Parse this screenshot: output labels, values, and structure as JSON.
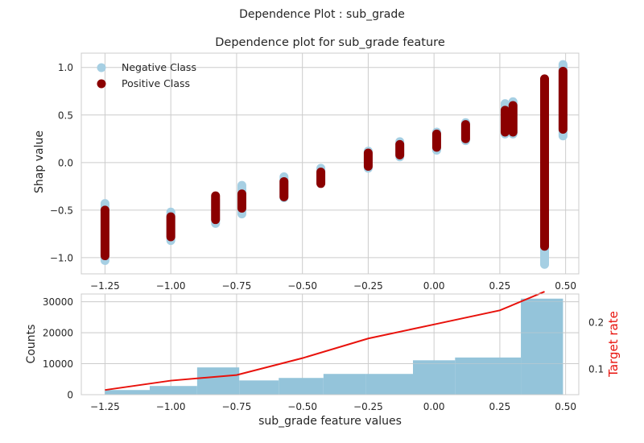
{
  "suptitle": "Dependence Plot : sub_grade",
  "chart_data": [
    {
      "type": "scatter",
      "title": "Dependence plot for sub_grade feature",
      "xlabel": "",
      "ylabel": "Shap value",
      "xlim": [
        -1.34,
        0.55
      ],
      "ylim": [
        -1.17,
        1.15
      ],
      "x_ticks": [
        -1.25,
        -1.0,
        -0.75,
        -0.5,
        -0.25,
        0.0,
        0.25,
        0.5
      ],
      "x_tick_labels": [
        "−1.25",
        "−1.00",
        "−0.75",
        "−0.50",
        "−0.25",
        "0.00",
        "0.25",
        "0.50"
      ],
      "y_ticks": [
        -1.0,
        -0.5,
        0.0,
        0.5,
        1.0
      ],
      "y_tick_labels": [
        "−1.0",
        "−0.5",
        "0.0",
        "0.5",
        "1.0"
      ],
      "grid": true,
      "legend_position": "top-left",
      "series": [
        {
          "name": "Negative Class",
          "color": "#a6cfe3",
          "points": [
            {
              "x": -1.25,
              "ymin": -1.03,
              "ymax": -0.43
            },
            {
              "x": -1.0,
              "ymin": -0.82,
              "ymax": -0.52
            },
            {
              "x": -0.83,
              "ymin": -0.64,
              "ymax": -0.39
            },
            {
              "x": -0.73,
              "ymin": -0.54,
              "ymax": -0.24
            },
            {
              "x": -0.57,
              "ymin": -0.37,
              "ymax": -0.15
            },
            {
              "x": -0.43,
              "ymin": -0.22,
              "ymax": -0.06
            },
            {
              "x": -0.25,
              "ymin": -0.06,
              "ymax": 0.12
            },
            {
              "x": -0.13,
              "ymin": 0.06,
              "ymax": 0.22
            },
            {
              "x": 0.01,
              "ymin": 0.13,
              "ymax": 0.32
            },
            {
              "x": 0.12,
              "ymin": 0.23,
              "ymax": 0.42
            },
            {
              "x": 0.27,
              "ymin": 0.3,
              "ymax": 0.62
            },
            {
              "x": 0.3,
              "ymin": 0.3,
              "ymax": 0.64
            },
            {
              "x": 0.42,
              "ymin": -1.07,
              "ymax": 0.86
            },
            {
              "x": 0.49,
              "ymin": 0.28,
              "ymax": 1.03
            }
          ]
        },
        {
          "name": "Positive Class",
          "color": "#8b0000",
          "points": [
            {
              "x": -1.25,
              "ymin": -0.98,
              "ymax": -0.5
            },
            {
              "x": -1.0,
              "ymin": -0.78,
              "ymax": -0.57
            },
            {
              "x": -0.83,
              "ymin": -0.6,
              "ymax": -0.35
            },
            {
              "x": -0.73,
              "ymin": -0.48,
              "ymax": -0.33
            },
            {
              "x": -0.57,
              "ymin": -0.36,
              "ymax": -0.2
            },
            {
              "x": -0.43,
              "ymin": -0.22,
              "ymax": -0.1
            },
            {
              "x": -0.25,
              "ymin": -0.04,
              "ymax": 0.1
            },
            {
              "x": -0.13,
              "ymin": 0.08,
              "ymax": 0.19
            },
            {
              "x": 0.01,
              "ymin": 0.16,
              "ymax": 0.3
            },
            {
              "x": 0.12,
              "ymin": 0.25,
              "ymax": 0.4
            },
            {
              "x": 0.27,
              "ymin": 0.32,
              "ymax": 0.55
            },
            {
              "x": 0.3,
              "ymin": 0.32,
              "ymax": 0.6
            },
            {
              "x": 0.42,
              "ymin": -0.88,
              "ymax": 0.88
            },
            {
              "x": 0.49,
              "ymin": 0.35,
              "ymax": 0.96
            }
          ]
        }
      ]
    },
    {
      "type": "bar",
      "title": "",
      "xlabel": "sub_grade feature values",
      "ylabel": "Counts",
      "y2label": "Target rate",
      "xlim": [
        -1.34,
        0.55
      ],
      "ylim": [
        0,
        32500
      ],
      "y2lim": [
        0.045,
        0.26
      ],
      "x_ticks": [
        -1.25,
        -1.0,
        -0.75,
        -0.5,
        -0.25,
        0.0,
        0.25,
        0.5
      ],
      "x_tick_labels": [
        "−1.25",
        "−1.00",
        "−0.75",
        "−0.50",
        "−0.25",
        "0.00",
        "0.25",
        "0.50"
      ],
      "y_ticks": [
        0,
        10000,
        20000,
        30000
      ],
      "y_tick_labels": [
        "0",
        "10000",
        "20000",
        "30000"
      ],
      "y2_ticks": [
        0.1,
        0.2
      ],
      "y2_tick_labels": [
        "0.1",
        "0.2"
      ],
      "grid": true,
      "bar_color": "#94c4da",
      "line_color": "#e8120c",
      "bins": [
        {
          "x0": -1.25,
          "x1": -1.08,
          "count": 1500
        },
        {
          "x0": -1.08,
          "x1": -0.9,
          "count": 2800
        },
        {
          "x0": -0.9,
          "x1": -0.74,
          "count": 8800
        },
        {
          "x0": -0.74,
          "x1": -0.59,
          "count": 4600
        },
        {
          "x0": -0.59,
          "x1": -0.42,
          "count": 5400
        },
        {
          "x0": -0.42,
          "x1": -0.26,
          "count": 6700
        },
        {
          "x0": -0.26,
          "x1": -0.08,
          "count": 6700
        },
        {
          "x0": -0.08,
          "x1": 0.08,
          "count": 11100
        },
        {
          "x0": 0.08,
          "x1": 0.33,
          "count": 12000
        },
        {
          "x0": 0.33,
          "x1": 0.49,
          "count": 31000
        }
      ],
      "target_rate": {
        "x": [
          -1.25,
          -1.0,
          -0.75,
          -0.5,
          -0.25,
          0.0,
          0.25,
          0.42
        ],
        "y": [
          0.055,
          0.075,
          0.087,
          0.123,
          0.165,
          0.195,
          0.225,
          0.265
        ]
      }
    }
  ]
}
